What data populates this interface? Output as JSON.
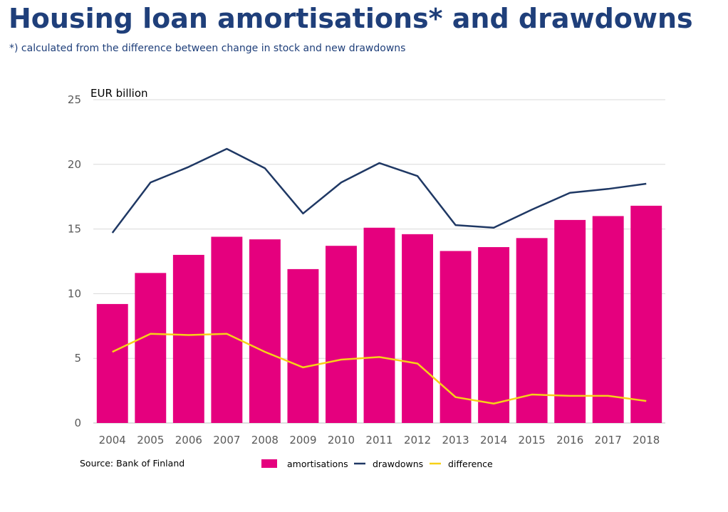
{
  "title": "Housing loan amortisations* and drawdowns",
  "subtitle": "*) calculated from the difference between change in stock and new drawdowns",
  "source": "Source: Bank of Finland",
  "chart_data": {
    "type": "bar",
    "unit_label": "EUR billion",
    "categories": [
      "2004",
      "2005",
      "2006",
      "2007",
      "2008",
      "2009",
      "2010",
      "2011",
      "2012",
      "2013",
      "2014",
      "2015",
      "2016",
      "2017",
      "2018"
    ],
    "ylim": [
      0,
      25
    ],
    "yticks": [
      0,
      5,
      10,
      15,
      20,
      25
    ],
    "grid": true,
    "legend_position": "bottom",
    "series": [
      {
        "name": "amortisations",
        "type": "bar",
        "color": "#e5007e",
        "values": [
          9.2,
          11.6,
          13.0,
          14.4,
          14.2,
          11.9,
          13.7,
          15.1,
          14.6,
          13.3,
          13.6,
          14.3,
          15.7,
          16.0,
          16.8
        ]
      },
      {
        "name": "drawdowns",
        "type": "line",
        "color": "#1f3864",
        "values": [
          14.7,
          18.6,
          19.8,
          21.2,
          19.7,
          16.2,
          18.6,
          20.1,
          19.1,
          15.3,
          15.1,
          16.5,
          17.8,
          18.1,
          18.5
        ]
      },
      {
        "name": "difference",
        "type": "line",
        "color": "#f7d117",
        "values": [
          5.5,
          6.9,
          6.8,
          6.9,
          5.5,
          4.3,
          4.9,
          5.1,
          4.6,
          2.0,
          1.5,
          2.2,
          2.1,
          2.1,
          1.7
        ]
      }
    ]
  }
}
